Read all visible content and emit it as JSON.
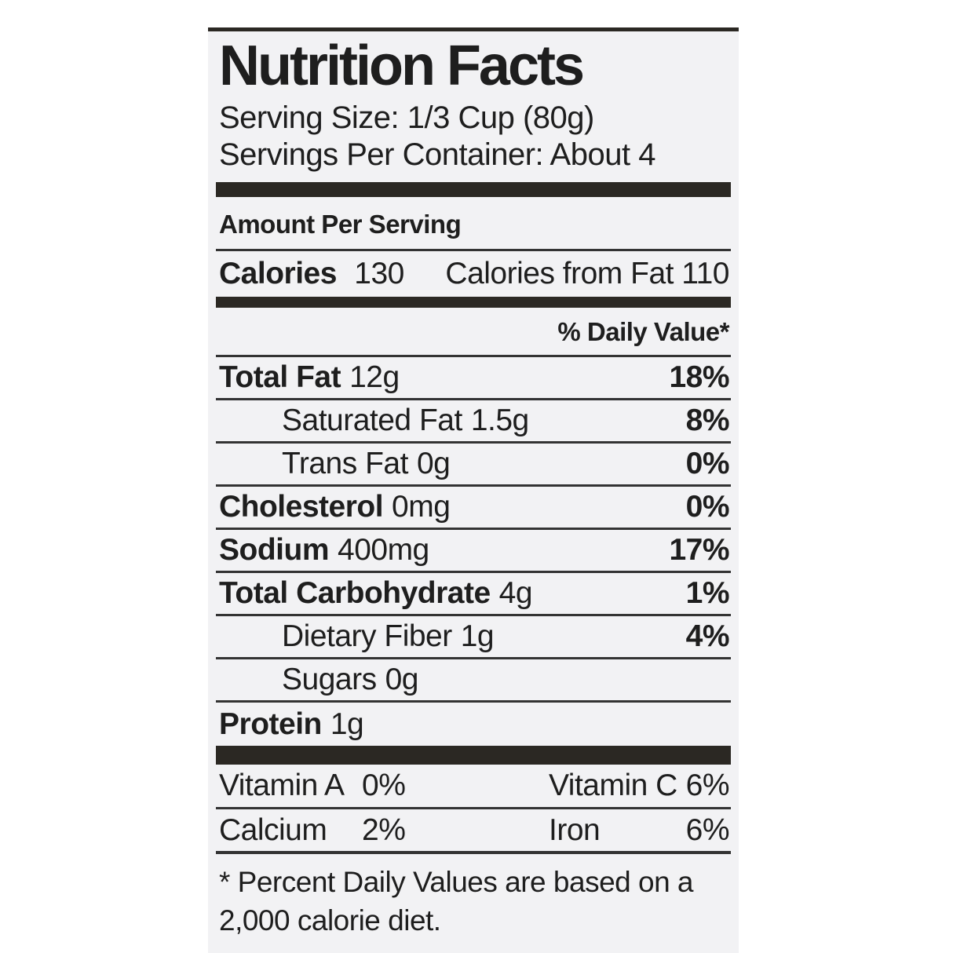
{
  "colors": {
    "page_background": "#ffffff",
    "label_background": "#f2f2f4",
    "bar_color": "#2b2823",
    "text_color": "#1e1e1e"
  },
  "label": {
    "title": "Nutrition Facts",
    "serving_size": "Serving Size: 1/3 Cup (80g)",
    "servings_per_container": "Servings Per Container: About 4",
    "amount_per_serving_header": "Amount Per Serving",
    "calories": {
      "label": "Calories",
      "value": "130",
      "from_fat": "Calories from Fat 110"
    },
    "daily_value_header": "% Daily Value*",
    "nutrients": [
      {
        "name": "Total Fat",
        "amount": "12g",
        "daily_value": "18%",
        "emphasis": true,
        "indent": false,
        "rule_below": true
      },
      {
        "name": "Saturated Fat",
        "amount": "1.5g",
        "daily_value": "8%",
        "emphasis": false,
        "indent": true,
        "rule_below": true
      },
      {
        "name": "Trans Fat",
        "amount": "0g",
        "daily_value": "0%",
        "emphasis": false,
        "indent": true,
        "rule_below": true
      },
      {
        "name": "Cholesterol",
        "amount": "0mg",
        "daily_value": "0%",
        "emphasis": true,
        "indent": false,
        "rule_below": true
      },
      {
        "name": "Sodium",
        "amount": "400mg",
        "daily_value": "17%",
        "emphasis": true,
        "indent": false,
        "rule_below": true
      },
      {
        "name": "Total Carbohydrate",
        "amount": "4g",
        "daily_value": "1%",
        "emphasis": true,
        "indent": false,
        "rule_below": true
      },
      {
        "name": "Dietary Fiber",
        "amount": "1g",
        "daily_value": "4%",
        "emphasis": false,
        "indent": true,
        "rule_below": true
      },
      {
        "name": "Sugars",
        "amount": "0g",
        "daily_value": "",
        "emphasis": false,
        "indent": true,
        "rule_below": true
      },
      {
        "name": "Protein",
        "amount": "1g",
        "daily_value": "",
        "emphasis": true,
        "indent": false,
        "rule_below": false
      }
    ],
    "vitamins": [
      {
        "left_label": "Vitamin A",
        "left_value": "0%",
        "right_label": "Vitamin C",
        "right_value": "6%",
        "heavy_rule": false
      },
      {
        "left_label": "Calcium",
        "left_value": "2%",
        "right_label": "Iron",
        "right_value": "6%",
        "heavy_rule": true
      }
    ],
    "footnote": {
      "line1": "* Percent Daily Values are based on a",
      "line2": "2,000 calorie diet."
    }
  }
}
